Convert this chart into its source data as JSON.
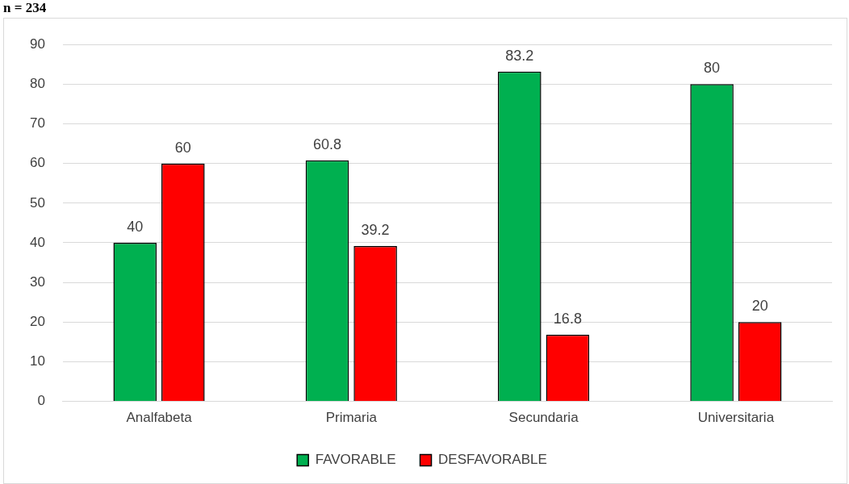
{
  "chart_data": {
    "type": "bar",
    "annotations": [
      "n = 234"
    ],
    "categories": [
      "Analfabeta",
      "Primaria",
      "Secundaria",
      "Universitaria"
    ],
    "series": [
      {
        "name": "FAVORABLE",
        "color": "#00b050",
        "values": [
          40,
          60.8,
          83.2,
          80
        ]
      },
      {
        "name": "DESFAVORABLE",
        "color": "#ff0000",
        "values": [
          60,
          39.2,
          16.8,
          20
        ]
      }
    ],
    "ylim": [
      0,
      90
    ],
    "yticks": [
      0,
      10,
      20,
      30,
      40,
      50,
      60,
      70,
      80,
      90
    ],
    "grid": "y",
    "legend": "bottom",
    "data_labels": true
  }
}
